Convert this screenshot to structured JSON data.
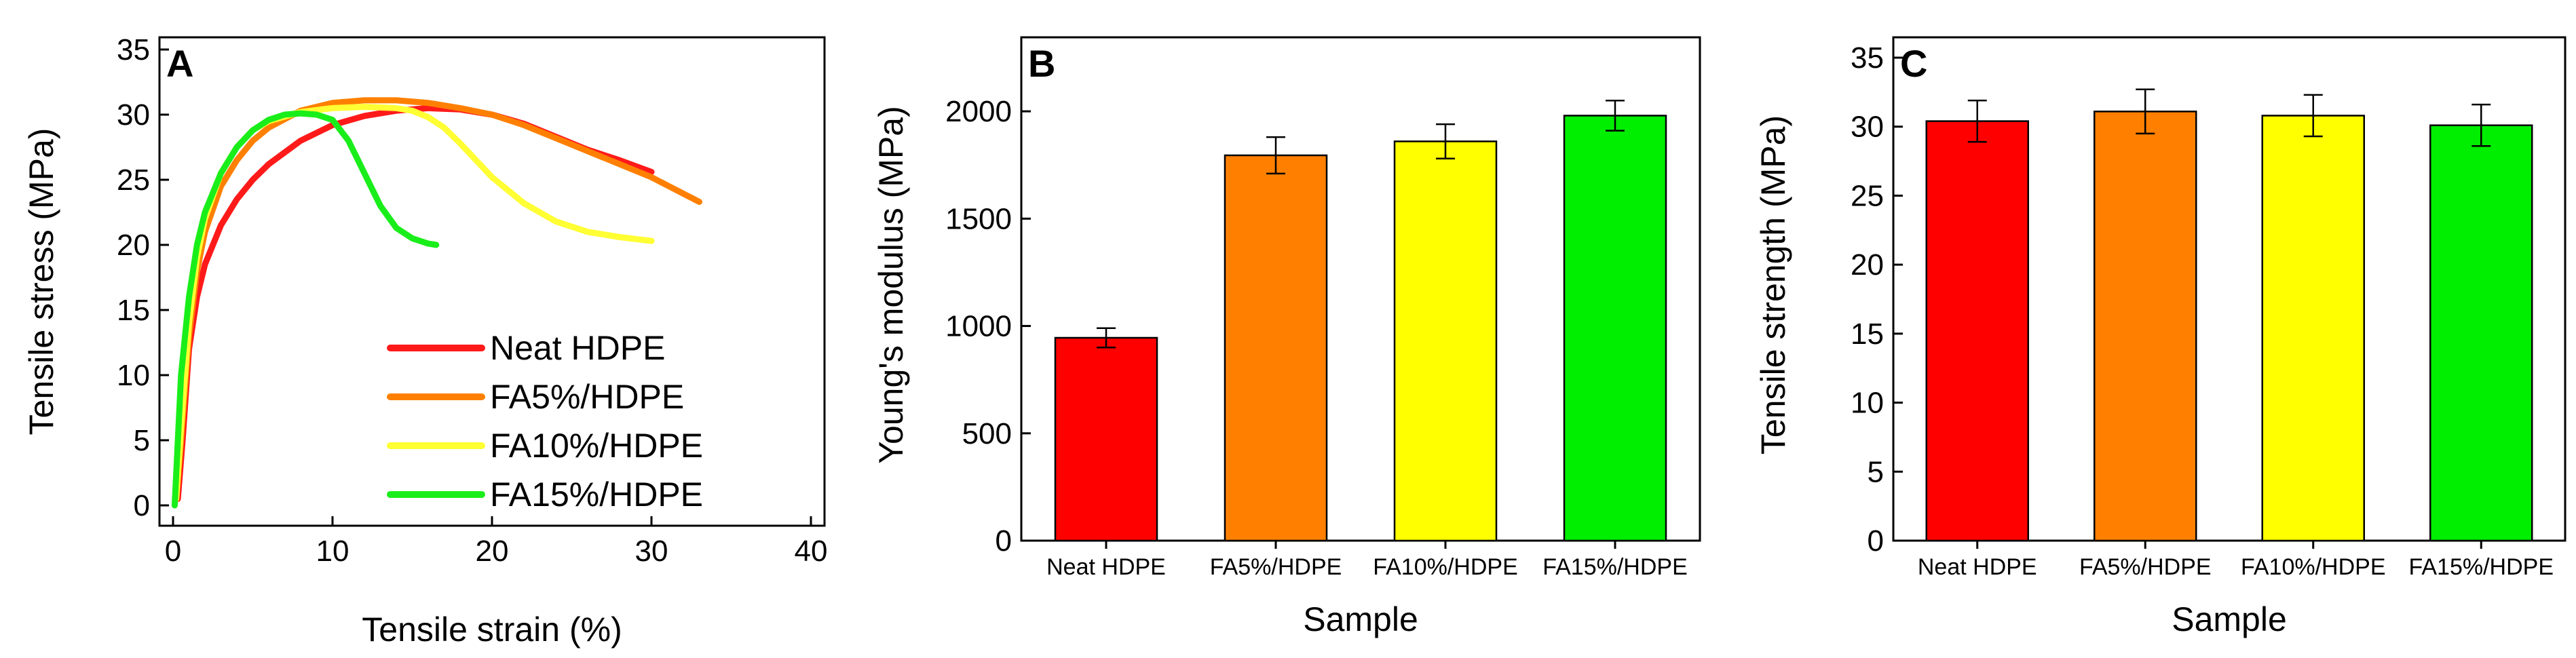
{
  "chart_data": [
    {
      "type": "line",
      "panel": "A",
      "title": "",
      "xlabel": "Tensile strain (%)",
      "ylabel": "Tensile stress (MPa)",
      "xlim": [
        0,
        40
      ],
      "ylim": [
        0,
        35
      ],
      "xticks": [
        0,
        10,
        20,
        30,
        40
      ],
      "yticks": [
        0,
        5,
        10,
        15,
        20,
        25,
        30,
        35
      ],
      "legend_position": "center-right",
      "series": [
        {
          "name": "Neat HDPE",
          "color": "#ff1a1a",
          "x": [
            0.3,
            0.6,
            1,
            1.5,
            2,
            3,
            4,
            5,
            6,
            8,
            10,
            12,
            14,
            16,
            18,
            20,
            22,
            24,
            26,
            28,
            30
          ],
          "y": [
            0.5,
            5,
            12,
            16,
            18.5,
            21.5,
            23.5,
            25,
            26.2,
            28,
            29.2,
            29.9,
            30.3,
            30.5,
            30.4,
            30,
            29.3,
            28.3,
            27.3,
            26.5,
            25.6
          ]
        },
        {
          "name": "FA5%/HDPE",
          "color": "#ff8000",
          "x": [
            0.2,
            0.5,
            1,
            1.5,
            2,
            3,
            4,
            5,
            6,
            8,
            10,
            12,
            14,
            16,
            18,
            20,
            22,
            24,
            26,
            28,
            30,
            33
          ],
          "y": [
            0.5,
            5,
            13,
            18,
            21,
            24.5,
            26.5,
            28,
            29,
            30.3,
            30.9,
            31.1,
            31.1,
            30.9,
            30.5,
            30,
            29.2,
            28.2,
            27.2,
            26.2,
            25.2,
            23.3
          ]
        },
        {
          "name": "FA10%/HDPE",
          "color": "#ffff33",
          "x": [
            0.2,
            0.5,
            1,
            1.5,
            2,
            3,
            4,
            5,
            6,
            8,
            10,
            12,
            14,
            15,
            16,
            17,
            18,
            19,
            20,
            22,
            24,
            26,
            28,
            30
          ],
          "y": [
            0.5,
            6,
            14,
            19,
            22,
            25.5,
            27.5,
            28.8,
            29.5,
            30.2,
            30.5,
            30.6,
            30.5,
            30.3,
            29.8,
            29,
            27.8,
            26.5,
            25.2,
            23.2,
            21.8,
            21,
            20.6,
            20.3
          ]
        },
        {
          "name": "FA15%/HDPE",
          "color": "#1aee1a",
          "x": [
            0.1,
            0.3,
            0.5,
            1,
            1.5,
            2,
            3,
            4,
            5,
            6,
            7,
            8,
            9,
            10,
            11,
            12,
            13,
            14,
            15,
            16,
            16.5
          ],
          "y": [
            0,
            5,
            10,
            16,
            20,
            22.5,
            25.5,
            27.5,
            28.8,
            29.6,
            30,
            30.1,
            30,
            29.6,
            28,
            25.5,
            23,
            21.3,
            20.5,
            20.1,
            20
          ]
        }
      ]
    },
    {
      "type": "bar",
      "panel": "B",
      "title": "",
      "xlabel": "Sample",
      "ylabel": "Young's modulus (MPa)",
      "ylim": [
        0,
        2250
      ],
      "yticks": [
        0,
        500,
        1000,
        1500,
        2000
      ],
      "categories": [
        "Neat HDPE",
        "FA5%/HDPE",
        "FA10%/HDPE",
        "FA15%/HDPE"
      ],
      "values": [
        945,
        1795,
        1860,
        1980
      ],
      "errors": [
        45,
        85,
        80,
        70
      ],
      "colors": [
        "#ff0000",
        "#ff8000",
        "#ffff00",
        "#00ee00"
      ]
    },
    {
      "type": "bar",
      "panel": "C",
      "title": "",
      "xlabel": "Sample",
      "ylabel": "Tensile strength (MPa)",
      "ylim": [
        0,
        35
      ],
      "yticks": [
        0,
        5,
        10,
        15,
        20,
        25,
        30,
        35
      ],
      "categories": [
        "Neat HDPE",
        "FA5%/HDPE",
        "FA10%/HDPE",
        "FA15%/HDPE"
      ],
      "values": [
        30.4,
        31.1,
        30.8,
        30.1
      ],
      "errors": [
        1.5,
        1.6,
        1.5,
        1.5
      ],
      "colors": [
        "#ff0000",
        "#ff8000",
        "#ffff00",
        "#00ee00"
      ]
    }
  ]
}
